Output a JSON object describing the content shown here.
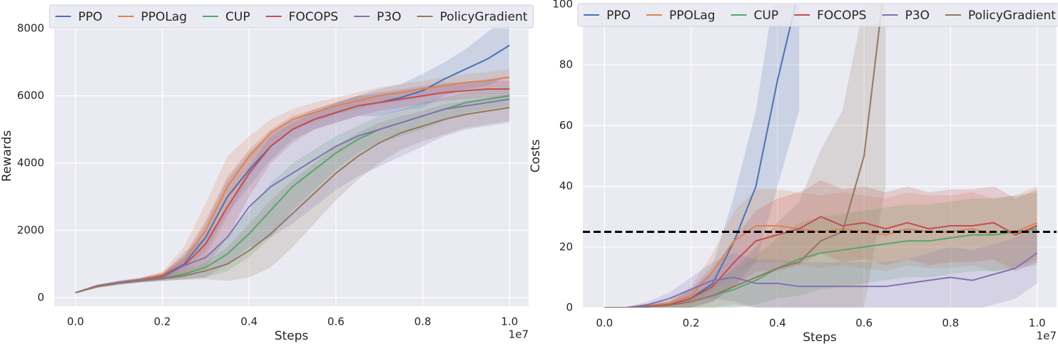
{
  "chart_data": [
    {
      "type": "line",
      "xlabel": "Steps",
      "ylabel": "Rewards",
      "x_offset_label": "1e7",
      "x": [
        0,
        0.05,
        0.1,
        0.15,
        0.2,
        0.25,
        0.3,
        0.35,
        0.4,
        0.45,
        0.5,
        0.55,
        0.6,
        0.65,
        0.7,
        0.75,
        0.8,
        0.85,
        0.9,
        0.95,
        1.0
      ],
      "xlim": [
        -0.049,
        1.044
      ],
      "xticks": [
        {
          "value": 0,
          "label": "0.0"
        },
        {
          "value": 0.2,
          "label": "0.2"
        },
        {
          "value": 0.4,
          "label": "0.4"
        },
        {
          "value": 0.6,
          "label": "0.6"
        },
        {
          "value": 0.8,
          "label": "0.8"
        },
        {
          "value": 1.0,
          "label": "1.0"
        }
      ],
      "ylim": [
        -254,
        8677
      ],
      "yticks": [
        0,
        2000,
        4000,
        6000,
        8000
      ],
      "grid": true,
      "legend": "upper center",
      "series": [
        {
          "name": "PPO",
          "color": "#4c72b0",
          "values": [
            150,
            350,
            450,
            530,
            650,
            1000,
            1800,
            3000,
            3800,
            4500,
            5000,
            5300,
            5500,
            5700,
            5800,
            5950,
            6150,
            6500,
            6800,
            7100,
            7500
          ],
          "std": [
            20,
            40,
            50,
            60,
            80,
            200,
            400,
            500,
            500,
            400,
            300,
            300,
            300,
            300,
            400,
            400,
            500,
            500,
            600,
            800,
            900
          ]
        },
        {
          "name": "PPOLag",
          "color": "#dd8452",
          "values": [
            150,
            350,
            450,
            540,
            680,
            1100,
            2000,
            3300,
            4200,
            4900,
            5300,
            5500,
            5700,
            5850,
            6000,
            6100,
            6200,
            6300,
            6400,
            6450,
            6550
          ],
          "std": [
            20,
            40,
            50,
            60,
            100,
            400,
            800,
            900,
            600,
            400,
            300,
            300,
            250,
            250,
            250,
            250,
            250,
            250,
            250,
            250,
            250
          ]
        },
        {
          "name": "CUP",
          "color": "#55a868",
          "values": [
            150,
            340,
            440,
            510,
            580,
            700,
            900,
            1300,
            1900,
            2600,
            3300,
            3800,
            4300,
            4700,
            5000,
            5200,
            5400,
            5600,
            5800,
            5900,
            6000
          ],
          "std": [
            20,
            40,
            50,
            50,
            80,
            150,
            300,
            500,
            700,
            800,
            700,
            600,
            500,
            400,
            400,
            400,
            400,
            350,
            300,
            300,
            300
          ]
        },
        {
          "name": "FOCOPS",
          "color": "#c44e52",
          "values": [
            150,
            350,
            450,
            530,
            640,
            950,
            1600,
            2700,
            3700,
            4500,
            5000,
            5300,
            5500,
            5700,
            5800,
            5900,
            6000,
            6100,
            6150,
            6200,
            6200
          ],
          "std": [
            20,
            40,
            50,
            60,
            100,
            300,
            700,
            900,
            700,
            500,
            400,
            300,
            300,
            300,
            250,
            250,
            250,
            250,
            250,
            250,
            250
          ]
        },
        {
          "name": "P3O",
          "color": "#8172b3",
          "values": [
            150,
            340,
            450,
            520,
            600,
            950,
            1200,
            1800,
            2700,
            3300,
            3700,
            4100,
            4500,
            4800,
            5000,
            5200,
            5400,
            5600,
            5700,
            5800,
            5900
          ],
          "std": [
            20,
            40,
            50,
            60,
            100,
            400,
            600,
            800,
            1200,
            1500,
            1500,
            1400,
            1300,
            1200,
            1100,
            1000,
            900,
            800,
            700,
            700,
            700
          ]
        },
        {
          "name": "PolicyGradient",
          "color": "#937860",
          "values": [
            150,
            330,
            430,
            500,
            560,
            650,
            800,
            1000,
            1400,
            1900,
            2500,
            3100,
            3700,
            4200,
            4600,
            4900,
            5100,
            5300,
            5450,
            5550,
            5650
          ],
          "std": [
            20,
            40,
            50,
            50,
            70,
            120,
            250,
            500,
            800,
            1000,
            1000,
            900,
            800,
            700,
            600,
            500,
            450,
            450,
            400,
            400,
            400
          ]
        }
      ]
    },
    {
      "type": "line",
      "xlabel": "Steps",
      "ylabel": "Costs",
      "x_offset_label": "1e7",
      "x": [
        0,
        0.05,
        0.1,
        0.15,
        0.2,
        0.25,
        0.3,
        0.35,
        0.4,
        0.45,
        0.5,
        0.55,
        0.6,
        0.65,
        0.7,
        0.75,
        0.8,
        0.85,
        0.9,
        0.95,
        1.0
      ],
      "xlim": [
        -0.05,
        1.045
      ],
      "xticks": [
        {
          "value": 0,
          "label": "0.0"
        },
        {
          "value": 0.2,
          "label": "0.2"
        },
        {
          "value": 0.4,
          "label": "0.4"
        },
        {
          "value": 0.6,
          "label": "0.6"
        },
        {
          "value": 0.8,
          "label": "0.8"
        },
        {
          "value": 1.0,
          "label": "1.0"
        }
      ],
      "ylim": [
        0,
        100
      ],
      "yticks": [
        0,
        20,
        40,
        60,
        80,
        100
      ],
      "grid": true,
      "legend": "upper center",
      "hline": 25,
      "series": [
        {
          "name": "PPO",
          "color": "#4c72b0",
          "values": [
            0,
            0,
            0.5,
            1,
            3,
            8,
            22,
            40,
            75,
            105,
            null,
            null,
            null,
            null,
            null,
            null,
            null,
            null,
            null,
            null,
            null
          ],
          "std": [
            0,
            0.2,
            0.5,
            1,
            3,
            6,
            15,
            25,
            35,
            40,
            null,
            null,
            null,
            null,
            null,
            null,
            null,
            null,
            null,
            null,
            null
          ]
        },
        {
          "name": "PPOLag",
          "color": "#dd8452",
          "values": [
            0,
            0,
            0.5,
            1.5,
            4,
            12,
            22,
            27,
            27,
            26,
            25,
            26,
            25,
            24,
            26,
            25,
            25,
            26,
            24,
            25,
            28
          ],
          "std": [
            0,
            0.2,
            0.5,
            1,
            3,
            6,
            10,
            12,
            12,
            12,
            12,
            12,
            12,
            12,
            12,
            12,
            12,
            12,
            12,
            12,
            12
          ]
        },
        {
          "name": "CUP",
          "color": "#55a868",
          "values": [
            0,
            0,
            0.3,
            0.8,
            2,
            4,
            6,
            9,
            13,
            16,
            18,
            19,
            20,
            21,
            22,
            22,
            23,
            24,
            24,
            25,
            26
          ],
          "std": [
            0,
            0.2,
            0.5,
            1,
            2,
            4,
            6,
            8,
            10,
            12,
            12,
            12,
            12,
            12,
            12,
            12,
            12,
            12,
            12,
            12,
            12
          ]
        },
        {
          "name": "FOCOPS",
          "color": "#c44e52",
          "values": [
            0,
            0,
            0.5,
            1,
            3,
            7,
            15,
            22,
            24,
            26,
            30,
            27,
            28,
            26,
            28,
            26,
            27,
            27,
            28,
            24,
            27
          ],
          "std": [
            0,
            0.2,
            0.5,
            1,
            3,
            5,
            8,
            10,
            12,
            12,
            12,
            12,
            12,
            12,
            12,
            12,
            12,
            12,
            12,
            12,
            12
          ]
        },
        {
          "name": "P3O",
          "color": "#8172b3",
          "values": [
            0,
            0,
            1,
            3,
            6,
            9,
            10,
            8,
            8,
            7,
            7,
            7,
            7,
            7,
            8,
            9,
            10,
            9,
            11,
            13,
            18
          ],
          "std": [
            0,
            0.2,
            1,
            2,
            4,
            6,
            8,
            8,
            8,
            8,
            8,
            8,
            8,
            8,
            8,
            9,
            10,
            10,
            10,
            10,
            10
          ]
        },
        {
          "name": "PolicyGradient",
          "color": "#937860",
          "values": [
            0,
            0,
            0.3,
            0.8,
            2,
            4,
            7,
            10,
            13,
            15,
            22,
            25,
            50,
            110,
            null,
            null,
            null,
            null,
            null,
            null,
            null
          ],
          "std": [
            0,
            0.2,
            0.5,
            1,
            2,
            4,
            6,
            10,
            15,
            20,
            30,
            40,
            50,
            70,
            null,
            null,
            null,
            null,
            null,
            null,
            null
          ]
        }
      ]
    }
  ]
}
